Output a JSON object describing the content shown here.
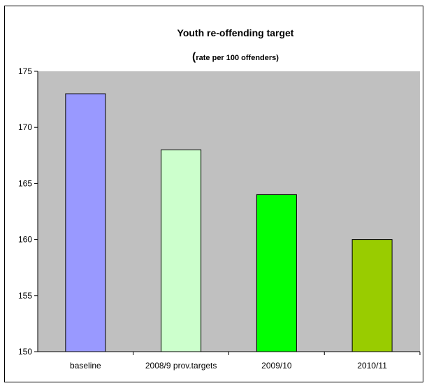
{
  "chart_data": {
    "type": "bar",
    "title": "Youth re-offending target",
    "subtitle_paren": "(",
    "subtitle_rest": "rate per 100 offenders)",
    "categories": [
      "baseline",
      "2008/9 prov.targets",
      "2009/10",
      "2010/11"
    ],
    "values": [
      173,
      168,
      164,
      160
    ],
    "bar_colors": [
      "#9999ff",
      "#ccffcc",
      "#00ff00",
      "#99cc00"
    ],
    "ylim": [
      150,
      175
    ],
    "yticks": [
      "150",
      "155",
      "160",
      "165",
      "170",
      "175"
    ],
    "plot_background": "#c0c0c0",
    "grid": false,
    "legend": "none",
    "xlabel": "",
    "ylabel": ""
  }
}
